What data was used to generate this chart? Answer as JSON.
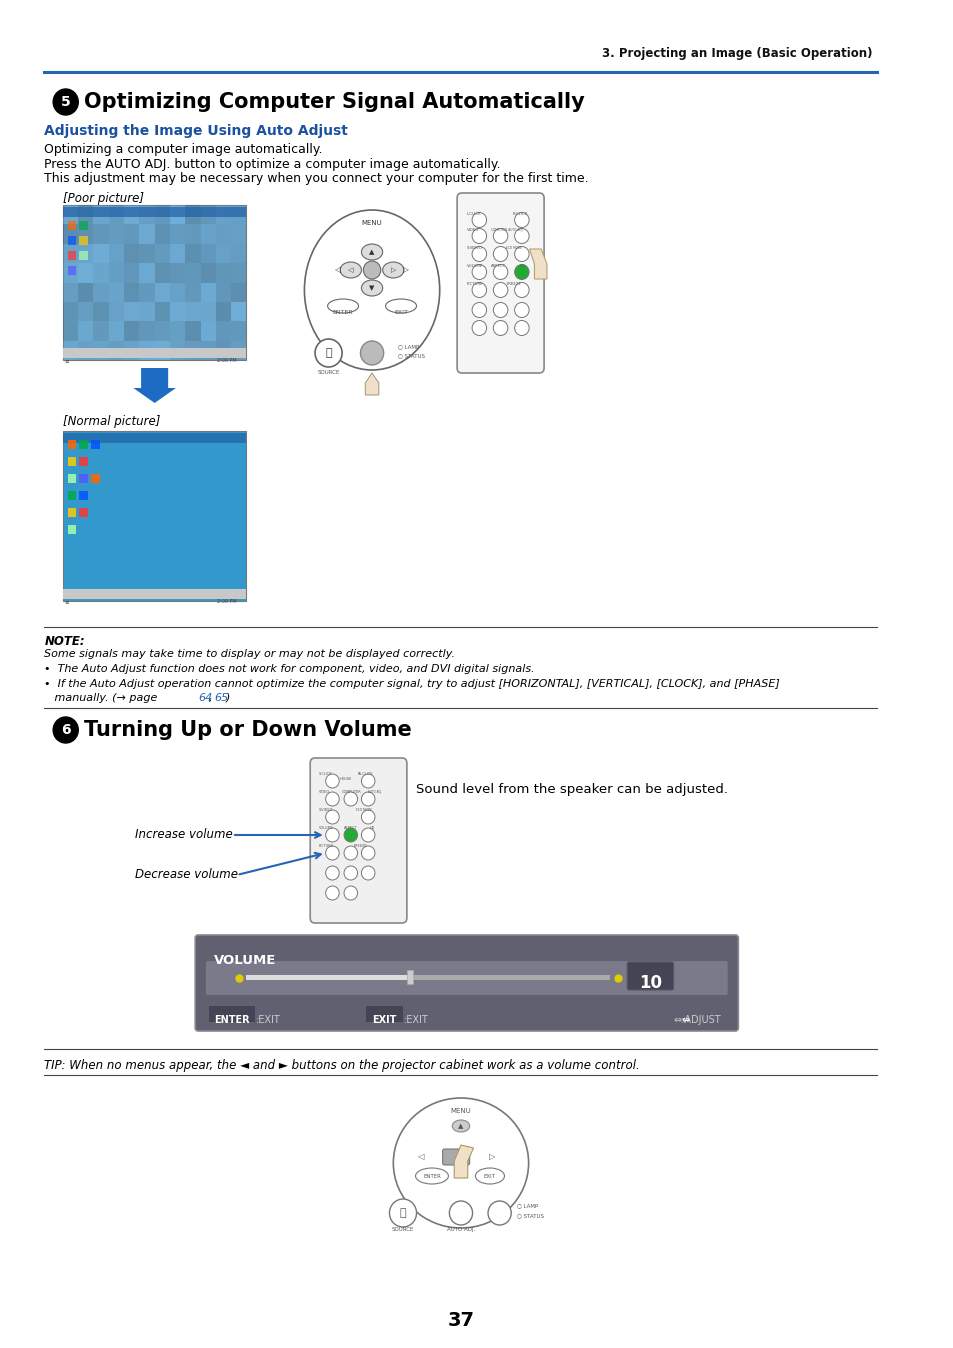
{
  "bg_color": "#ffffff",
  "page_width": 9.54,
  "page_height": 13.48,
  "header_text": "3. Projecting an Image (Basic Operation)",
  "header_color": "#111111",
  "header_line_color": "#2566b0",
  "section5_title": "Optimizing Computer Signal Automatically",
  "section5_subtitle": "Adjusting the Image Using Auto Adjust",
  "section5_body1": "Optimizing a computer image automatically.",
  "section5_body2": "Press the AUTO ADJ. button to optimize a computer image automatically.",
  "section5_body3": "This adjustment may be necessary when you connect your computer for the first time.",
  "poor_picture_label": "[Poor picture]",
  "normal_picture_label": "[Normal picture]",
  "note_label": "NOTE:",
  "note_line1": "Some signals may take time to display or may not be displayed correctly.",
  "note_bullet1": "•  The Auto Adjust function does not work for component, video, and DVI digital signals.",
  "note_bullet2": "•  If the Auto Adjust operation cannot optimize the computer signal, try to adjust [HORIZONTAL], [VERTICAL], [CLOCK], and [PHASE]",
  "note_bullet2b": "   manually. (→ page 64, 65)",
  "note_page64": "64",
  "note_page65": "65",
  "section6_title": "Turning Up or Down Volume",
  "increase_volume_label": "Increase volume",
  "decrease_volume_label": "Decrease volume",
  "sound_level_text": "Sound level from the speaker can be adjusted.",
  "volume_bar_label": "VOLUME",
  "volume_value": "10",
  "tip_text": "TIP: When no menus appear, the ◄ and ► buttons on the projector cabinet work as a volume control.",
  "page_number": "37",
  "dark_color": "#111111",
  "blue_color": "#2566b0",
  "link_color": "#2566b0",
  "subtitle_color": "#1a52a0",
  "screen_blue": "#3399cc",
  "screen_poor_blue": "#7ab8d9",
  "remote_border": "#888888",
  "remote_bg": "#f0f0f0",
  "vol_box_bg": "#5a5a6a",
  "vol_inner_bg": "#7a7a8a",
  "vol_slider_track": "#aaaaaa",
  "vol_number_bg": "#444455"
}
